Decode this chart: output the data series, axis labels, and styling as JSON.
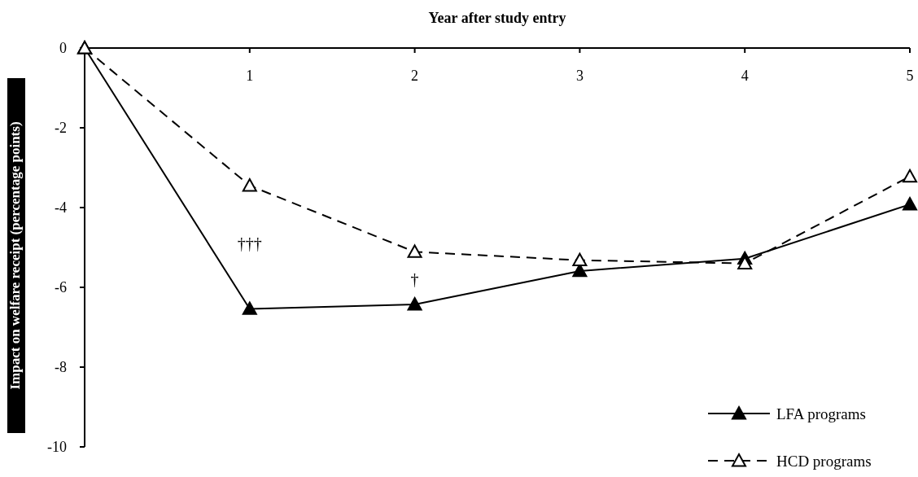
{
  "chart_data": {
    "type": "line",
    "xlabel": "Year after study entry",
    "ylabel": "Impact on welfare receipt (percentage points)",
    "x": [
      0,
      1,
      2,
      3,
      4,
      5
    ],
    "series": [
      {
        "name": "LFA programs",
        "color": "#000000",
        "values": [
          0,
          -6.54,
          -6.43,
          -5.59,
          -5.28,
          -3.92
        ],
        "marker": "triangle",
        "line_style": "solid"
      },
      {
        "name": "HCD programs",
        "color": "#000000",
        "values": [
          0,
          -3.45,
          -5.11,
          -5.32,
          -5.4,
          -3.22
        ],
        "marker": "triangle",
        "line_style": "dashed"
      }
    ],
    "xlim": [
      0,
      5
    ],
    "xticks": [
      1,
      2,
      3,
      4,
      5
    ],
    "ylim": [
      -10,
      0
    ],
    "yticks": [
      0,
      -2,
      -4,
      -6,
      -8,
      -10
    ],
    "annotations": [
      "†††",
      "†"
    ],
    "legend": "bottom right",
    "grid": false
  }
}
